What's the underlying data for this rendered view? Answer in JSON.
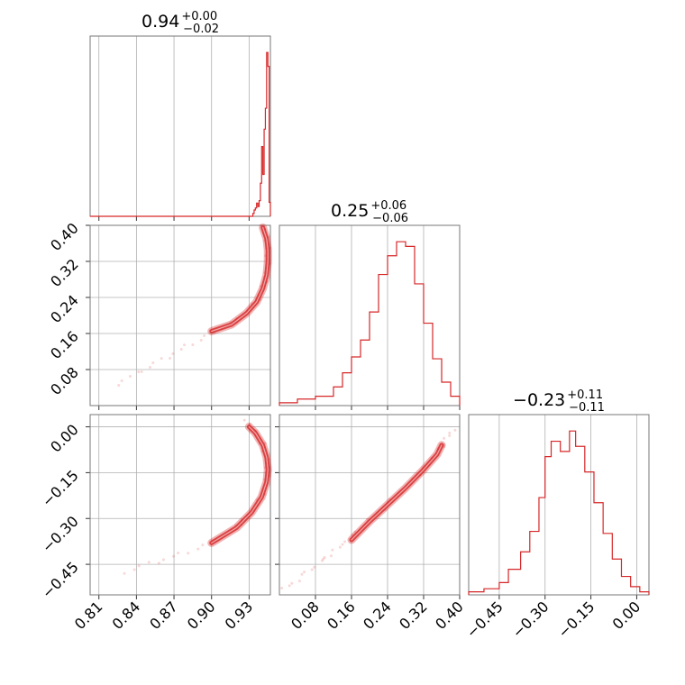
{
  "color": "#d62728",
  "chart_data": {
    "type": "corner",
    "title": "",
    "params": [
      {
        "key": "p0",
        "range": [
          0.803,
          0.947
        ],
        "ticks": [
          0.81,
          0.84,
          0.87,
          0.9,
          0.93
        ],
        "tick_labels": [
          "0.81",
          "0.84",
          "0.87",
          "0.90",
          "0.93"
        ],
        "title_main": "0.94",
        "title_plus": "+0.00",
        "title_minus": "−0.02",
        "hist_x": [
          0.803,
          0.933,
          0.934,
          0.935,
          0.936,
          0.937,
          0.938,
          0.939,
          0.94,
          0.941,
          0.942,
          0.943,
          0.944,
          0.945,
          0.946,
          0.947
        ],
        "hist_counts": [
          0,
          8,
          18,
          24,
          38,
          28,
          45,
          95,
          200,
          120,
          250,
          310,
          470,
          430,
          40,
          0
        ]
      },
      {
        "key": "p1",
        "range": [
          0.0,
          0.4
        ],
        "ticks": [
          0.08,
          0.16,
          0.24,
          0.32,
          0.4
        ],
        "tick_labels": [
          "0.08",
          "0.16",
          "0.24",
          "0.32",
          "0.40"
        ],
        "title_main": "0.25",
        "title_plus": "+0.06",
        "title_minus": "−0.06",
        "hist_x": [
          0.0,
          0.04,
          0.08,
          0.12,
          0.14,
          0.16,
          0.18,
          0.2,
          0.22,
          0.24,
          0.26,
          0.28,
          0.3,
          0.32,
          0.34,
          0.36,
          0.38,
          0.4
        ],
        "hist_counts": [
          3,
          7,
          10,
          20,
          35,
          52,
          70,
          100,
          140,
          160,
          175,
          170,
          130,
          88,
          50,
          25,
          10,
          3
        ]
      },
      {
        "key": "p2",
        "range": [
          -0.55,
          0.04
        ],
        "ticks": [
          -0.45,
          -0.3,
          -0.15,
          0.0
        ],
        "tick_labels": [
          "−0.45",
          "−0.30",
          "−0.15",
          "0.00"
        ],
        "title_main": "−0.23",
        "title_plus": "+0.11",
        "title_minus": "−0.11",
        "hist_x": [
          -0.55,
          -0.5,
          -0.45,
          -0.42,
          -0.38,
          -0.35,
          -0.32,
          -0.3,
          -0.28,
          -0.25,
          -0.22,
          -0.2,
          -0.17,
          -0.14,
          -0.11,
          -0.08,
          -0.05,
          -0.02,
          0.01,
          0.04
        ],
        "hist_counts": [
          3,
          6,
          12,
          25,
          42,
          62,
          95,
          135,
          150,
          140,
          160,
          145,
          120,
          90,
          60,
          35,
          18,
          8,
          3,
          0
        ]
      }
    ],
    "panels_2d": [
      {
        "x": "p0",
        "y": "p1",
        "ridge": [
          [
            0.941,
            0.395
          ],
          [
            0.944,
            0.37
          ],
          [
            0.945,
            0.345
          ],
          [
            0.945,
            0.32
          ],
          [
            0.944,
            0.29
          ],
          [
            0.941,
            0.26
          ],
          [
            0.936,
            0.23
          ],
          [
            0.928,
            0.205
          ],
          [
            0.916,
            0.18
          ],
          [
            0.9,
            0.16
          ],
          [
            0.88,
            0.13
          ],
          [
            0.86,
            0.1
          ],
          [
            0.84,
            0.07
          ],
          [
            0.82,
            0.04
          ]
        ],
        "core": [
          [
            0.941,
            0.395
          ],
          [
            0.944,
            0.37
          ],
          [
            0.945,
            0.345
          ],
          [
            0.945,
            0.32
          ],
          [
            0.944,
            0.29
          ],
          [
            0.941,
            0.26
          ],
          [
            0.936,
            0.23
          ],
          [
            0.928,
            0.205
          ],
          [
            0.916,
            0.18
          ],
          [
            0.9,
            0.165
          ]
        ]
      },
      {
        "x": "p0",
        "y": "p2",
        "ridge": [
          [
            0.928,
            0.015
          ],
          [
            0.935,
            -0.02
          ],
          [
            0.941,
            -0.06
          ],
          [
            0.944,
            -0.1
          ],
          [
            0.945,
            -0.14
          ],
          [
            0.944,
            -0.18
          ],
          [
            0.94,
            -0.23
          ],
          [
            0.932,
            -0.28
          ],
          [
            0.92,
            -0.33
          ],
          [
            0.9,
            -0.38
          ],
          [
            0.875,
            -0.42
          ],
          [
            0.85,
            -0.45
          ],
          [
            0.825,
            -0.485
          ]
        ],
        "core": [
          [
            0.93,
            0.0
          ],
          [
            0.935,
            -0.02
          ],
          [
            0.941,
            -0.06
          ],
          [
            0.944,
            -0.1
          ],
          [
            0.945,
            -0.14
          ],
          [
            0.944,
            -0.18
          ],
          [
            0.94,
            -0.23
          ],
          [
            0.932,
            -0.28
          ],
          [
            0.92,
            -0.33
          ],
          [
            0.9,
            -0.38
          ]
        ]
      },
      {
        "x": "p1",
        "y": "p2",
        "ridge": [
          [
            0.01,
            -0.535
          ],
          [
            0.05,
            -0.49
          ],
          [
            0.09,
            -0.445
          ],
          [
            0.12,
            -0.41
          ],
          [
            0.16,
            -0.36
          ],
          [
            0.2,
            -0.31
          ],
          [
            0.24,
            -0.255
          ],
          [
            0.28,
            -0.2
          ],
          [
            0.32,
            -0.14
          ],
          [
            0.35,
            -0.085
          ],
          [
            0.37,
            -0.045
          ],
          [
            0.39,
            0.005
          ]
        ],
        "core": [
          [
            0.16,
            -0.37
          ],
          [
            0.2,
            -0.31
          ],
          [
            0.24,
            -0.255
          ],
          [
            0.28,
            -0.2
          ],
          [
            0.32,
            -0.14
          ],
          [
            0.35,
            -0.09
          ],
          [
            0.36,
            -0.06
          ]
        ]
      }
    ]
  }
}
